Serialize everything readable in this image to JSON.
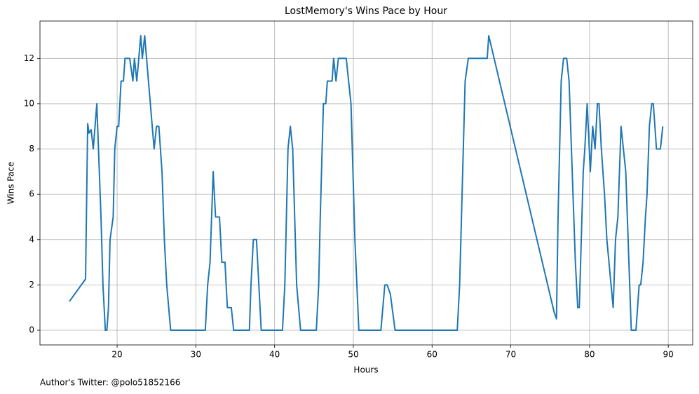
{
  "chart_data": {
    "type": "line",
    "title": "LostMemory's Wins Pace by Hour",
    "x_label": "Hours",
    "y_label": "Wins Pace",
    "annotation": "Author's Twitter: @polo51852166",
    "xlim": [
      10.2,
      93.1
    ],
    "ylim": [
      -0.65,
      13.65
    ],
    "xticks": [
      20,
      30,
      40,
      50,
      60,
      70,
      80,
      90
    ],
    "yticks": [
      0,
      2,
      4,
      6,
      8,
      10,
      12
    ],
    "grid": true,
    "series": [
      {
        "name": "Wins Pace",
        "color": "#1f77b4",
        "x": [
          13.94,
          15.99,
          16.26,
          16.44,
          16.7,
          16.97,
          17.42,
          17.95,
          18.2,
          18.5,
          18.7,
          18.9,
          19.1,
          19.5,
          19.7,
          20.0,
          20.2,
          20.5,
          20.8,
          21.0,
          21.6,
          22.0,
          22.2,
          22.5,
          23.0,
          23.2,
          23.5,
          24.7,
          25.0,
          25.3,
          25.7,
          26.0,
          26.3,
          26.8,
          31.2,
          31.5,
          31.8,
          32.2,
          32.5,
          33.0,
          33.3,
          33.7,
          34.0,
          34.5,
          34.8,
          36.8,
          37.0,
          37.3,
          37.7,
          38.3,
          41.0,
          41.3,
          41.7,
          42.0,
          42.3,
          42.8,
          43.3,
          45.3,
          45.6,
          45.8,
          46.2,
          46.5,
          46.7,
          47.3,
          47.5,
          47.8,
          48.1,
          49.1,
          49.7,
          50.2,
          50.7,
          53.5,
          54.0,
          54.3,
          54.7,
          55.3,
          63.2,
          63.5,
          64.2,
          64.6,
          67.0,
          67.2,
          75.5,
          75.8,
          76.0,
          76.4,
          76.7,
          77.1,
          77.4,
          78.2,
          78.5,
          78.7,
          79.2,
          79.4,
          79.7,
          80.1,
          80.4,
          80.7,
          81.0,
          81.2,
          81.5,
          81.9,
          82.2,
          83.0,
          83.3,
          83.6,
          84.0,
          84.6,
          85.0,
          85.3,
          85.9,
          86.3,
          86.5,
          86.8,
          87.1,
          87.3,
          87.6,
          87.9,
          88.1,
          88.5,
          89.0,
          89.3
        ],
        "values": [
          1.27,
          2.26,
          9.12,
          8.7,
          8.85,
          8,
          10,
          5,
          2,
          0,
          0,
          1,
          4,
          5,
          8,
          9,
          9,
          11,
          11,
          12,
          12,
          11,
          12,
          11,
          13,
          12,
          13,
          8,
          9,
          9,
          7,
          4,
          2,
          0,
          0,
          2,
          3,
          7,
          5,
          5,
          3,
          3,
          1,
          1,
          0,
          0,
          2,
          4,
          4,
          0,
          0,
          2,
          8,
          9,
          8,
          2,
          0,
          0,
          2,
          5,
          10,
          10,
          11,
          11,
          12,
          11,
          12,
          12,
          10,
          4,
          0,
          0,
          2,
          2,
          1.6,
          0,
          0,
          2,
          11,
          12,
          12,
          13,
          0.8,
          0.5,
          5,
          11,
          12,
          12,
          11,
          3,
          1,
          1,
          7,
          8,
          10,
          7,
          9,
          8,
          10,
          10,
          8,
          6,
          4,
          1,
          4,
          5,
          9,
          7,
          3,
          0,
          0,
          2,
          2,
          3,
          5,
          6,
          9,
          10,
          10,
          8,
          8,
          9
        ]
      }
    ]
  }
}
